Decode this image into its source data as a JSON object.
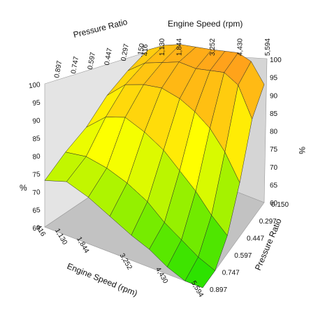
{
  "chart_data": {
    "type": "surface",
    "zlabel_left": "%",
    "zlabel_right": "%",
    "x_axis": {
      "label": "Engine Speed (rpm)",
      "ticks": [
        "416",
        "1,130",
        "1,844",
        "3,252",
        "4,430",
        "5,594"
      ],
      "values": [
        416,
        1130,
        1844,
        3252,
        4430,
        5594
      ]
    },
    "y_axis": {
      "label": "Pressure Ratio",
      "ticks": [
        "0.150",
        "0.297",
        "0.447",
        "0.597",
        "0.747",
        "0.897"
      ],
      "ticks_back": [
        ".150",
        "0.297",
        "0.447",
        "0.597",
        "0.747",
        "0.897"
      ],
      "values": [
        0.15,
        0.297,
        0.447,
        0.597,
        0.747,
        0.897
      ]
    },
    "z_axis": {
      "ticks_left": [
        "60",
        "65",
        "70",
        "75",
        "80",
        "85",
        "90",
        "95",
        "100"
      ],
      "ticks_right": [
        "60",
        "65",
        "70",
        "75",
        "80",
        "85",
        "90",
        "95",
        "100"
      ],
      "range": [
        60,
        100
      ]
    },
    "surface": {
      "rpm": [
        416,
        1130,
        1844,
        2548,
        3252,
        3841,
        4430,
        5012,
        5594
      ],
      "pressure_ratio": [
        0.15,
        0.297,
        0.447,
        0.597,
        0.747,
        0.897
      ],
      "efficiency": [
        [
          90,
          93,
          95,
          96,
          97,
          98,
          99,
          98,
          93
        ],
        [
          88,
          92,
          94,
          96,
          96,
          97,
          98,
          96,
          88
        ],
        [
          85,
          90,
          92,
          93,
          92,
          90,
          87,
          82,
          75
        ],
        [
          80,
          85,
          87,
          85,
          82,
          78,
          74,
          69,
          65
        ],
        [
          77,
          78,
          77,
          75,
          72,
          68,
          65,
          62,
          60
        ],
        [
          73,
          75,
          73,
          70,
          67,
          65,
          62,
          60,
          60
        ]
      ]
    },
    "colors": {
      "low": "#33dd00",
      "mid": "#ffff00",
      "high": "#ff9900",
      "wall_back": "#e4e4e4",
      "wall_side": "#d2d2d2",
      "floor": "#bdbdbd"
    }
  }
}
